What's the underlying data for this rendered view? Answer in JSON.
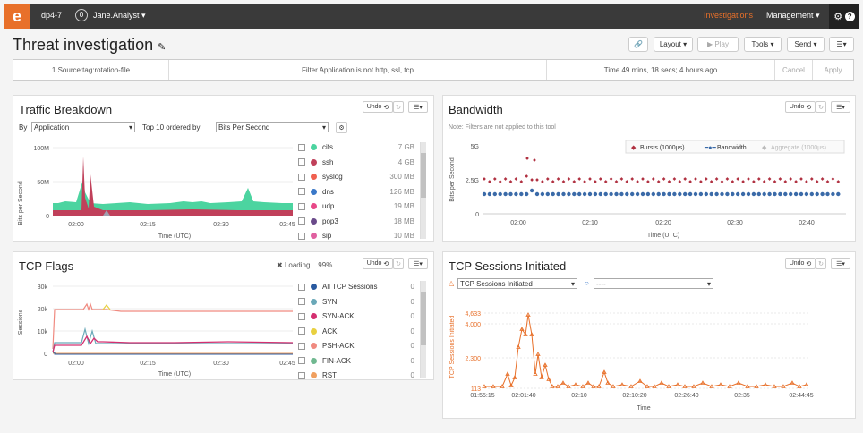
{
  "topbar": {
    "logo": "e",
    "device": "dp4-7",
    "notif_count": "0",
    "user": "Jane.Analyst",
    "investigations": "Investigations",
    "management": "Management"
  },
  "page": {
    "title": "Threat investigation"
  },
  "toolbar": {
    "layout": "Layout",
    "play": "Play",
    "tools": "Tools",
    "send": "Send"
  },
  "filters": {
    "source": "1 Source:tag:rotation-file",
    "application": "Filter Application is not http, ssl, tcp",
    "time": "Time 49 mins, 18 secs; 4 hours ago",
    "cancel": "Cancel",
    "apply": "Apply"
  },
  "traffic": {
    "title": "Traffic Breakdown",
    "undo": "Undo",
    "by_label": "By",
    "by_value": "Application",
    "top_label": "Top 10 ordered by",
    "order_value": "Bits Per Second",
    "ylabel": "Bits per Second",
    "xlabel": "Time (UTC)",
    "yticks": [
      "100M",
      "50M",
      "0"
    ],
    "xticks": [
      "02:00",
      "02:15",
      "02:30",
      "02:45"
    ],
    "legend": [
      {
        "name": "cifs",
        "value": "7 GB",
        "color": "#4cd4a0"
      },
      {
        "name": "ssh",
        "value": "4 GB",
        "color": "#c0405a"
      },
      {
        "name": "syslog",
        "value": "300 MB",
        "color": "#f06050"
      },
      {
        "name": "dns",
        "value": "126 MB",
        "color": "#3a78c8"
      },
      {
        "name": "udp",
        "value": "19 MB",
        "color": "#e84888"
      },
      {
        "name": "pop3",
        "value": "18 MB",
        "color": "#6a4a8a"
      },
      {
        "name": "sip",
        "value": "10 MB",
        "color": "#e060a0"
      }
    ]
  },
  "bandwidth": {
    "title": "Bandwidth",
    "undo": "Undo",
    "note": "Note: Filters are not applied to this tool",
    "ylabel": "Bits per Second",
    "xlabel": "Time (UTC)",
    "yticks": [
      "5G",
      "2.5G",
      "0"
    ],
    "xticks": [
      "02:00",
      "02:10",
      "02:20",
      "02:30",
      "02:40"
    ],
    "legend": [
      "Bursts (1000µs)",
      "Bandwidth",
      "Aggregate (1000µs)"
    ]
  },
  "tcpflags": {
    "title": "TCP Flags",
    "undo": "Undo",
    "loading": "Loading... 99%",
    "ylabel": "Sessions",
    "xlabel": "Time (UTC)",
    "yticks": [
      "30k",
      "20k",
      "10k",
      "0"
    ],
    "xticks": [
      "02:00",
      "02:15",
      "02:30",
      "02:45"
    ],
    "legend": [
      {
        "name": "All TCP Sessions",
        "value": "0",
        "color": "#2a5aa0"
      },
      {
        "name": "SYN",
        "value": "0",
        "color": "#6aa8b8"
      },
      {
        "name": "SYN-ACK",
        "value": "0",
        "color": "#d43070"
      },
      {
        "name": "ACK",
        "value": "0",
        "color": "#e8d040"
      },
      {
        "name": "PSH-ACK",
        "value": "0",
        "color": "#f08a80"
      },
      {
        "name": "FIN-ACK",
        "value": "0",
        "color": "#70b890"
      },
      {
        "name": "RST",
        "value": "0",
        "color": "#f0a060"
      }
    ]
  },
  "sessions": {
    "title": "TCP Sessions Initiated",
    "undo": "Undo",
    "metric1": "TCP Sessions Initiated",
    "metric2": "----",
    "ylabel": "TCP Sessions Initiated",
    "xlabel": "Time",
    "yticks": [
      "4,633",
      "4,000",
      "2,300",
      "113"
    ],
    "xticks": [
      "01:55:15",
      "02:01:40",
      "02:10",
      "02:10:20",
      "02:26:40",
      "02:35",
      "02:44:45"
    ]
  },
  "colors": {
    "accent": "#e8702a",
    "bandwidth_line": "#3a6aa8",
    "bursts": "#b03040"
  }
}
